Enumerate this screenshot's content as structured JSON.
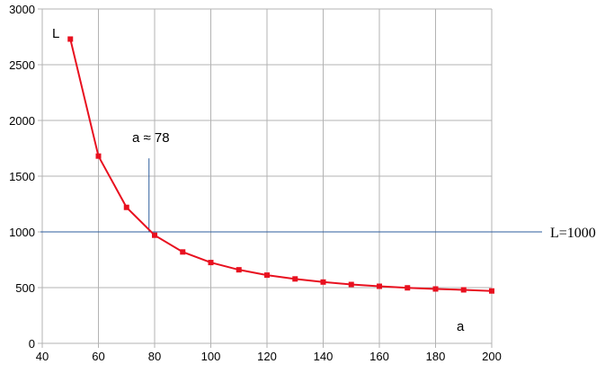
{
  "chart_data": {
    "type": "line",
    "title": "",
    "xlabel": "a",
    "ylabel": "L",
    "xlim": [
      40,
      200
    ],
    "ylim": [
      0,
      3000
    ],
    "xticks": [
      40,
      60,
      80,
      100,
      120,
      140,
      160,
      180,
      200
    ],
    "yticks": [
      0,
      500,
      1000,
      1500,
      2000,
      2500,
      3000
    ],
    "grid": true,
    "series": [
      {
        "color": "#e8101f",
        "x": [
          50,
          60,
          70,
          80,
          90,
          100,
          110,
          120,
          130,
          140,
          150,
          160,
          170,
          180,
          190,
          200
        ],
        "y": [
          2730,
          1680,
          1220,
          970,
          820,
          725,
          660,
          612,
          578,
          550,
          528,
          512,
          498,
          488,
          480,
          470
        ]
      }
    ],
    "reference_lines": {
      "horizontal": {
        "y": 1000,
        "label": "L=1000",
        "color": "#2e5d9e"
      },
      "vertical": {
        "x": 78,
        "y_top": 1660,
        "label": "a ≈ 78",
        "color": "#2e5d9e"
      }
    },
    "annotations": {
      "y_axis_letter": "L",
      "x_axis_letter": "a",
      "vertical_label": "a ≈ 78",
      "horizontal_label": "L=1000"
    }
  }
}
